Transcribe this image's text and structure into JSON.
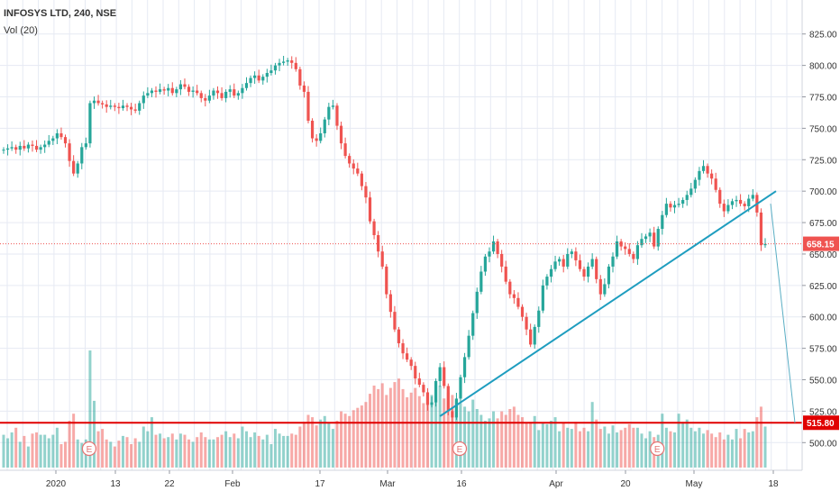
{
  "header": {
    "title": "INFOSYS LTD, 240, NSE",
    "volume_indicator": "Vol (20)"
  },
  "colors": {
    "up": "#26a69a",
    "down": "#ef5350",
    "grid": "#e6eaf3",
    "trendline": "#1e9dbf",
    "current_price_line": "#ef5350",
    "support_line": "#e00000",
    "projection_line": "#5aaec4"
  },
  "chart_data": {
    "type": "candlestick",
    "symbol": "INFOSYS LTD",
    "interval": "240",
    "exchange": "NSE",
    "y_axis": {
      "ticks": [
        500,
        525,
        550,
        575,
        600,
        625,
        650,
        675,
        700,
        725,
        750,
        775,
        800,
        825
      ],
      "tick_labels": [
        "500.00",
        "525.00",
        "550.00",
        "575.00",
        "600.00",
        "625.00",
        "650.00",
        "675.00",
        "700.00",
        "725.00",
        "750.00",
        "775.00",
        "800.00",
        "825.00"
      ],
      "range": [
        478,
        842
      ]
    },
    "x_axis": {
      "labels": [
        "2020",
        "13",
        "22",
        "Feb",
        "17",
        "Mar",
        "16",
        "Apr",
        "20",
        "May",
        "18"
      ]
    },
    "price_labels": {
      "current": 658.15,
      "current_label": "658.15",
      "support": 515.8,
      "support_label": "515.80"
    },
    "annotations": {
      "earnings_marker": "E",
      "trendline": {
        "from": {
          "label": "Mar 19",
          "price": 521
        },
        "to": {
          "label": "May 15",
          "price": 700
        }
      },
      "projection": {
        "from_price": 690,
        "to_price": 515.8
      }
    },
    "closes": [
      733,
      734,
      735,
      733,
      736,
      734,
      737,
      736,
      733,
      735,
      737,
      740,
      742,
      746,
      743,
      738,
      724,
      714,
      722,
      735,
      738,
      770,
      772,
      770,
      769,
      767,
      768,
      767,
      766,
      768,
      767,
      765,
      764,
      770,
      776,
      778,
      780,
      779,
      781,
      780,
      782,
      778,
      781,
      785,
      783,
      779,
      780,
      778,
      774,
      772,
      776,
      780,
      778,
      774,
      779,
      781,
      776,
      778,
      782,
      786,
      790,
      792,
      788,
      791,
      794,
      796,
      800,
      802,
      803,
      804,
      802,
      797,
      784,
      779,
      756,
      742,
      740,
      746,
      757,
      767,
      768,
      752,
      738,
      728,
      722,
      718,
      714,
      704,
      695,
      676,
      665,
      652,
      640,
      618,
      604,
      590,
      579,
      571,
      566,
      561,
      551,
      546,
      540,
      530,
      532,
      549,
      560,
      545,
      525,
      520,
      535,
      552,
      568,
      585,
      603,
      620,
      636,
      648,
      652,
      660,
      650,
      640,
      628,
      618,
      615,
      608,
      600,
      590,
      578,
      592,
      605,
      625,
      632,
      638,
      644,
      646,
      640,
      650,
      652,
      645,
      638,
      632,
      640,
      646,
      630,
      618,
      626,
      640,
      648,
      660,
      656,
      654,
      650,
      646,
      657,
      662,
      664,
      667,
      656,
      670,
      681,
      690,
      687,
      689,
      690,
      693,
      697,
      702,
      709,
      716,
      720,
      714,
      710,
      701,
      690,
      684,
      689,
      692,
      693,
      690,
      688,
      694,
      697,
      683,
      657,
      658
    ],
    "volume_relative": [
      0.28,
      0.25,
      0.3,
      0.34,
      0.22,
      0.27,
      0.18,
      0.29,
      0.3,
      0.28,
      0.28,
      0.25,
      0.28,
      0.34,
      0.2,
      0.22,
      0.4,
      0.46,
      0.24,
      0.21,
      0.24,
      1.0,
      0.57,
      0.31,
      0.33,
      0.24,
      0.22,
      0.18,
      0.23,
      0.27,
      0.26,
      0.2,
      0.25,
      0.22,
      0.35,
      0.31,
      0.43,
      0.28,
      0.29,
      0.25,
      0.26,
      0.29,
      0.24,
      0.29,
      0.28,
      0.24,
      0.22,
      0.26,
      0.3,
      0.26,
      0.24,
      0.24,
      0.26,
      0.28,
      0.31,
      0.26,
      0.29,
      0.25,
      0.35,
      0.31,
      0.26,
      0.3,
      0.27,
      0.24,
      0.28,
      0.2,
      0.33,
      0.29,
      0.27,
      0.27,
      0.29,
      0.28,
      0.35,
      0.39,
      0.45,
      0.43,
      0.36,
      0.41,
      0.44,
      0.38,
      0.33,
      0.4,
      0.48,
      0.46,
      0.44,
      0.49,
      0.51,
      0.53,
      0.56,
      0.63,
      0.7,
      0.67,
      0.72,
      0.62,
      0.68,
      0.73,
      0.76,
      0.67,
      0.6,
      0.64,
      0.68,
      0.61,
      0.55,
      0.6,
      0.62,
      0.58,
      0.7,
      0.59,
      0.64,
      0.62,
      0.57,
      0.55,
      0.52,
      0.48,
      0.58,
      0.5,
      0.45,
      0.4,
      0.42,
      0.48,
      0.42,
      0.48,
      0.45,
      0.5,
      0.52,
      0.45,
      0.43,
      0.38,
      0.39,
      0.44,
      0.32,
      0.38,
      0.37,
      0.4,
      0.43,
      0.31,
      0.38,
      0.34,
      0.33,
      0.39,
      0.31,
      0.34,
      0.31,
      0.56,
      0.41,
      0.33,
      0.35,
      0.29,
      0.36,
      0.3,
      0.32,
      0.34,
      0.37,
      0.34,
      0.34,
      0.29,
      0.25,
      0.31,
      0.26,
      0.28,
      0.46,
      0.34,
      0.31,
      0.3,
      0.46,
      0.39,
      0.41,
      0.34,
      0.31,
      0.34,
      0.29,
      0.32,
      0.29,
      0.26,
      0.3,
      0.24,
      0.28,
      0.24,
      0.33,
      0.25,
      0.33,
      0.3,
      0.31,
      0.43,
      0.52,
      0.35
    ]
  }
}
